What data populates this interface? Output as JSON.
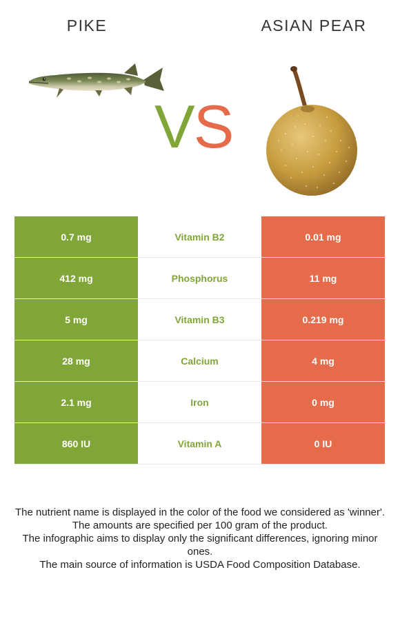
{
  "header": {
    "left_food": "PIKE",
    "right_food": "ASIAN PEAR",
    "vs_v": "V",
    "vs_s": "S"
  },
  "images": {
    "left": "pike-fish-illustration",
    "right": "asian-pear-illustration"
  },
  "colors": {
    "left_winner": "#7fa637",
    "right_winner": "#e56b4a"
  },
  "comparison": {
    "rows": [
      {
        "left": "0.7 mg",
        "nutrient": "Vitamin B2",
        "right": "0.01 mg",
        "winner": "left"
      },
      {
        "left": "412 mg",
        "nutrient": "Phosphorus",
        "right": "11 mg",
        "winner": "left"
      },
      {
        "left": "5 mg",
        "nutrient": "Vitamin B3",
        "right": "0.219 mg",
        "winner": "left"
      },
      {
        "left": "28 mg",
        "nutrient": "Calcium",
        "right": "4 mg",
        "winner": "left"
      },
      {
        "left": "2.1 mg",
        "nutrient": "Iron",
        "right": "0 mg",
        "winner": "left"
      },
      {
        "left": "860 IU",
        "nutrient": "Vitamin A",
        "right": "0 IU",
        "winner": "left"
      }
    ]
  },
  "notes": {
    "line1": "The nutrient name is displayed in the color of the food we considered as 'winner'.",
    "line2": "The amounts are specified per 100 gram of the product.",
    "line3": "The infographic aims to display only the significant differences, ignoring minor ones.",
    "line4": "The main source of information is USDA Food Composition Database."
  }
}
